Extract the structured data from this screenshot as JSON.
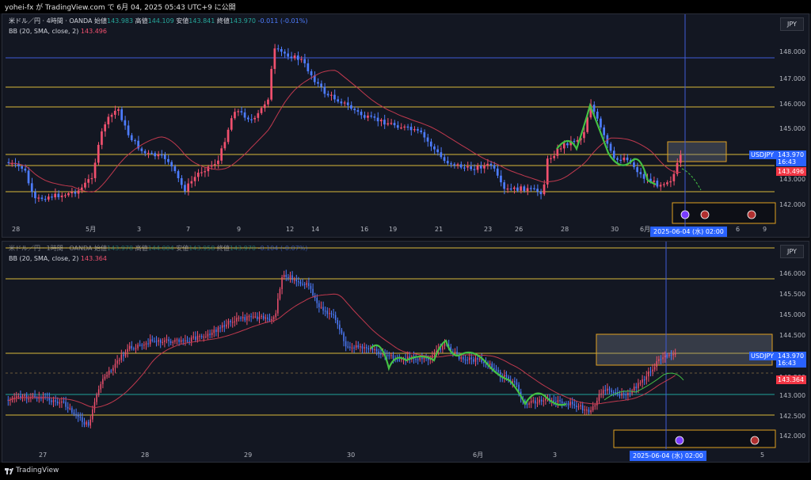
{
  "header": {
    "title": "yohei-fx が TradingView.com で 6月 04, 2025 05:43 UTC+9 に公開"
  },
  "panel1": {
    "symbol_line": "米ドル／円 · 4時間 · OANDA",
    "open_label": "始値",
    "open": "143.983",
    "high_label": "高値",
    "high": "144.109",
    "low_label": "安値",
    "low": "143.841",
    "close_label": "終値",
    "close": "143.970",
    "change": "-0.011 (-0.01%)",
    "bb_label": "BB (20, SMA, close, 2)",
    "bb_value": "143.496",
    "currency": "JPY",
    "price_ticks": [
      "148.000",
      "147.000",
      "146.000",
      "145.000",
      "144.000",
      "143.000",
      "142.000"
    ],
    "date_ticks": [
      "28",
      "5月",
      "3",
      "7",
      "9",
      "12",
      "14",
      "16",
      "19",
      "21",
      "23",
      "26",
      "28",
      "30",
      "6月",
      "6",
      "9"
    ],
    "price_tag_symbol": "USDJPY",
    "price_tag_value": "143.970",
    "countdown": "16:43",
    "bb_tag": "143.496",
    "crosshair_date": "2025-06-04 (水)  02:00"
  },
  "panel2": {
    "symbol_line": "米ドル／円 · 1時間 · OANDA",
    "open_label": "始値",
    "open": "143.978",
    "high_label": "高値",
    "high": "144.004",
    "low_label": "安値",
    "low": "143.958",
    "close_label": "終値",
    "close": "143.970",
    "change": "-0.104 (-0.07%)",
    "bb_label": "BB (20, SMA, close, 2)",
    "bb_value": "143.364",
    "currency": "JPY",
    "price_ticks": [
      "146.000",
      "145.500",
      "145.000",
      "144.500",
      "144.000",
      "143.500",
      "143.000",
      "142.500",
      "142.000"
    ],
    "date_ticks": [
      "27",
      "28",
      "29",
      "30",
      "6月",
      "3",
      "5"
    ],
    "price_tag_symbol": "USDJPY",
    "price_tag_value": "143.970",
    "countdown": "16:43",
    "bb_tag": "143.364",
    "crosshair_date": "2025-06-04 (水)  02:00"
  },
  "footer": {
    "brand": "TradingView"
  },
  "colors": {
    "up": "#f0506e",
    "down": "#4d7cfe",
    "level": "#d8b93a",
    "bb": "#c0394e",
    "zone": "#e0a020"
  }
}
